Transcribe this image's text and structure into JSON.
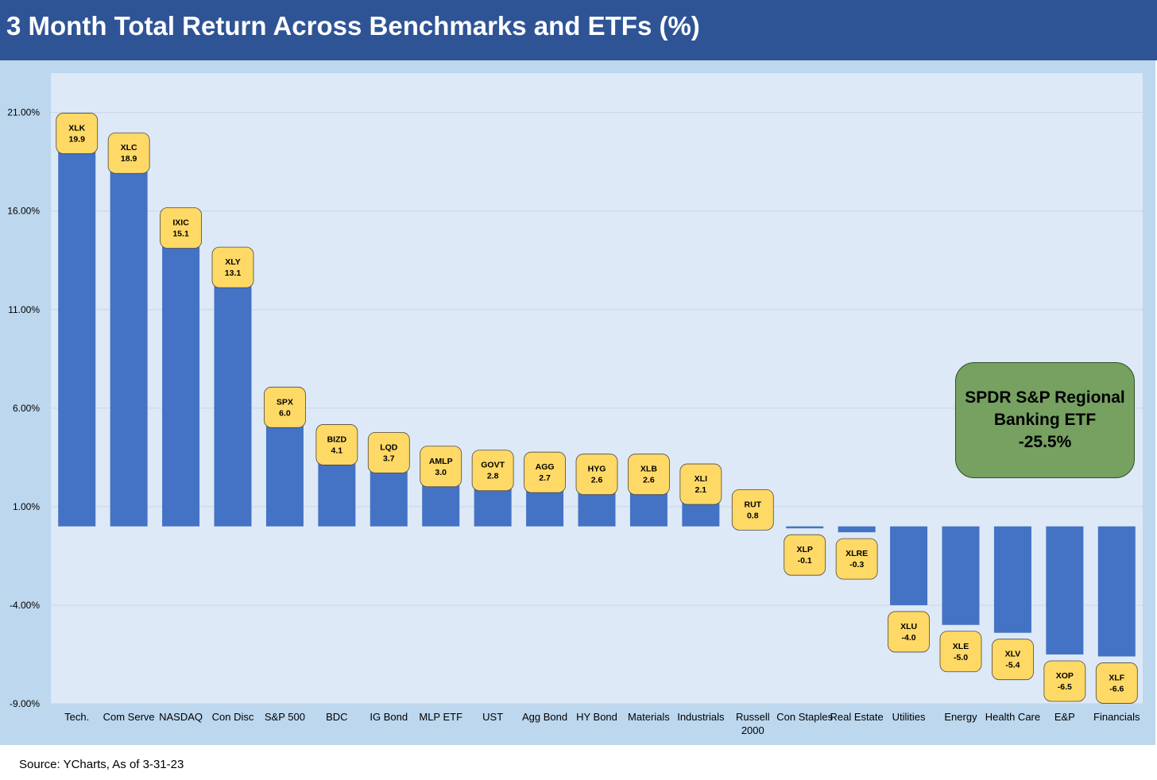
{
  "header": {
    "title": "3 Month Total Return Across Benchmarks and ETFs (%)"
  },
  "footer": {
    "source": "Source: YCharts, As of 3-31-23"
  },
  "callout": {
    "line1": "SPDR S&P Regional",
    "line2": "Banking ETF",
    "line3": "-25.5%"
  },
  "colors": {
    "bar": "#4472c4",
    "label_box": "#ffd966",
    "plot_bg": "#dde9f6",
    "outer_bg": "#bdd7ee",
    "header_bg": "#2f5496",
    "callout_bg": "#76a161"
  },
  "chart_data": {
    "type": "bar",
    "title": "3 Month Total Return Across Benchmarks and ETFs (%)",
    "xlabel": "",
    "ylabel": "",
    "ylim": [
      -9,
      23
    ],
    "yticks": [
      21,
      16,
      11,
      6,
      1,
      -4,
      -9
    ],
    "ytick_labels": [
      "21.00%",
      "16.00%",
      "11.00%",
      "6.00%",
      "1.00%",
      "-4.00%",
      "-9.00%"
    ],
    "grid": true,
    "legend": "none",
    "categories": [
      [
        "Tech."
      ],
      [
        "Com Serve"
      ],
      [
        "NASDAQ"
      ],
      [
        "Con Disc"
      ],
      [
        "S&P 500"
      ],
      [
        "BDC"
      ],
      [
        "IG Bond"
      ],
      [
        "MLP ETF"
      ],
      [
        "UST"
      ],
      [
        "Agg Bond"
      ],
      [
        "HY Bond"
      ],
      [
        "Materials"
      ],
      [
        "Industrials"
      ],
      [
        "Russell",
        "2000"
      ],
      [
        "Con Staples"
      ],
      [
        "Real Estate"
      ],
      [
        "Utilities"
      ],
      [
        "Energy"
      ],
      [
        "Health Care"
      ],
      [
        "E&P"
      ],
      [
        "Financials"
      ]
    ],
    "tickers": [
      "XLK",
      "XLC",
      "IXIC",
      "XLY",
      "SPX",
      "BIZD",
      "LQD",
      "AMLP",
      "GOVT",
      "AGG",
      "HYG",
      "XLB",
      "XLI",
      "RUT",
      "XLP",
      "XLRE",
      "XLU",
      "XLE",
      "XLV",
      "XOP",
      "XLF"
    ],
    "value_labels": [
      "19.9",
      "18.9",
      "15.1",
      "13.1",
      "6.0",
      "4.1",
      "3.7",
      "3.0",
      "2.8",
      "2.7",
      "2.6",
      "2.6",
      "2.1",
      "0.8",
      "-0.1",
      "-0.3",
      "-4.0",
      "-5.0",
      "-5.4",
      "-6.5",
      "-6.6"
    ],
    "values": [
      19.9,
      18.9,
      15.1,
      13.1,
      6.0,
      4.1,
      3.7,
      3.0,
      2.8,
      2.7,
      2.6,
      2.6,
      2.1,
      0.8,
      -0.1,
      -0.3,
      -4.0,
      -5.0,
      -5.4,
      -6.5,
      -6.6
    ]
  }
}
